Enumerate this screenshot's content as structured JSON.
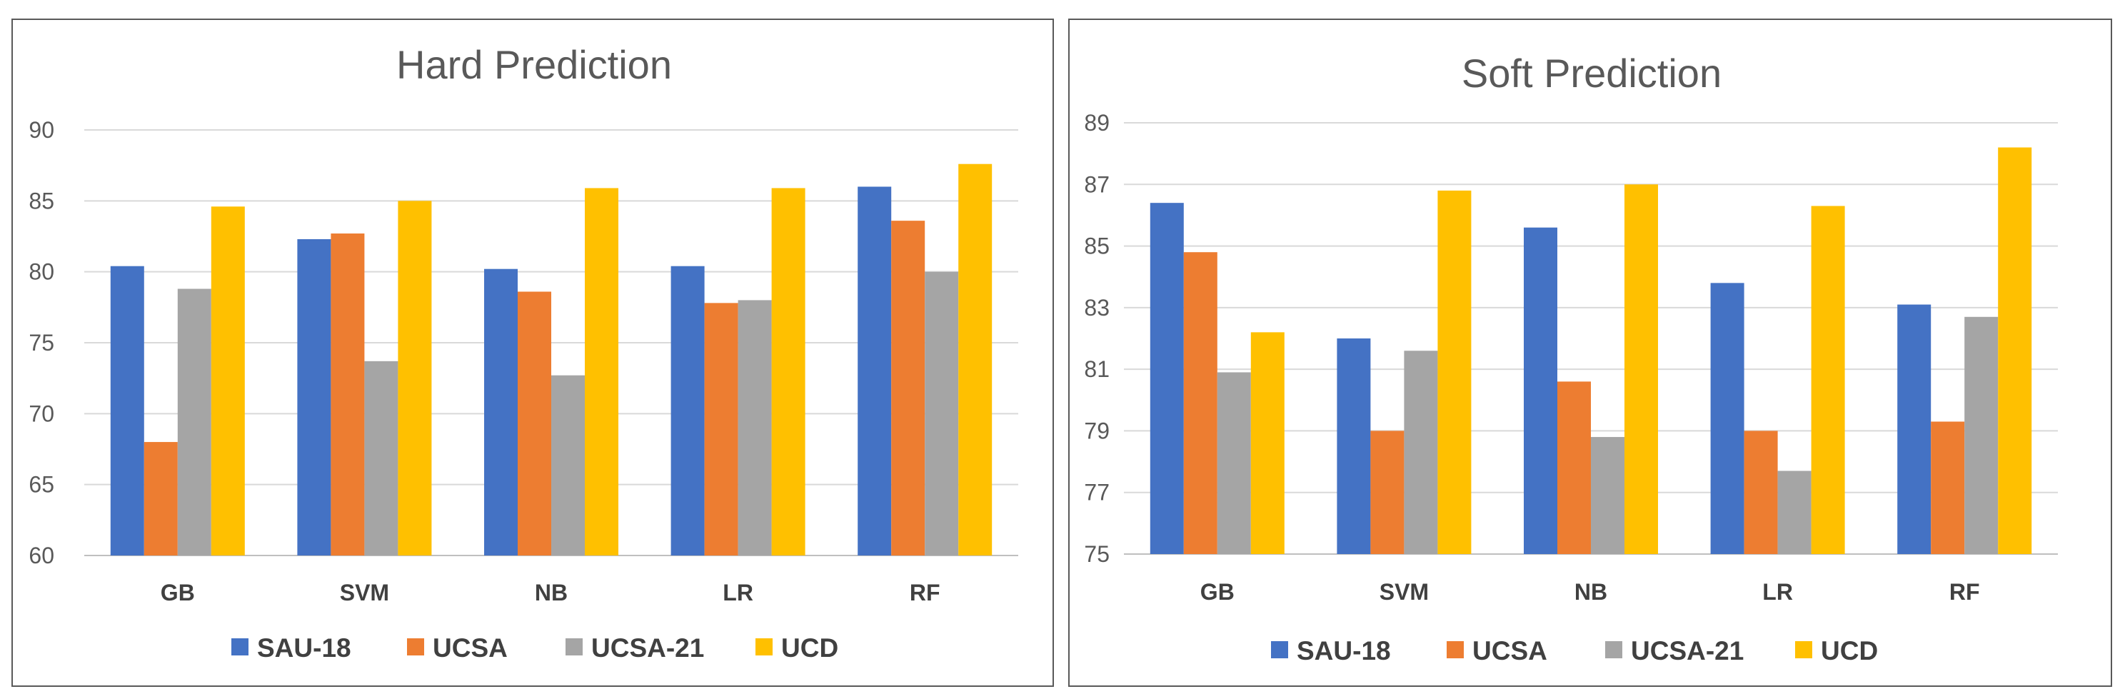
{
  "chart_data": [
    {
      "type": "bar",
      "title": "Hard Prediction",
      "categories": [
        "GB",
        "SVM",
        "NB",
        "LR",
        "RF"
      ],
      "ylim": [
        60,
        90
      ],
      "yticks": [
        60,
        65,
        70,
        75,
        80,
        85,
        90
      ],
      "xlabel": "",
      "ylabel": "",
      "legend_position": "bottom",
      "series": [
        {
          "name": "SAU-18",
          "color": "#4472C4",
          "values": [
            80.4,
            82.3,
            80.2,
            80.4,
            86.0
          ]
        },
        {
          "name": "UCSA",
          "color": "#ED7D31",
          "values": [
            68.0,
            82.7,
            78.6,
            77.8,
            83.6
          ]
        },
        {
          "name": "UCSA-21",
          "color": "#A5A5A5",
          "values": [
            78.8,
            73.7,
            72.7,
            78.0,
            80.0
          ]
        },
        {
          "name": "UCD",
          "color": "#FFC000",
          "values": [
            84.6,
            85.0,
            85.9,
            85.9,
            87.6
          ]
        }
      ]
    },
    {
      "type": "bar",
      "title": "Soft Prediction",
      "categories": [
        "GB",
        "SVM",
        "NB",
        "LR",
        "RF"
      ],
      "ylim": [
        75,
        89
      ],
      "yticks": [
        75,
        77,
        79,
        81,
        83,
        85,
        87,
        89
      ],
      "xlabel": "",
      "ylabel": "",
      "legend_position": "bottom",
      "series": [
        {
          "name": "SAU-18",
          "color": "#4472C4",
          "values": [
            86.4,
            82.0,
            85.6,
            83.8,
            83.1
          ]
        },
        {
          "name": "UCSA",
          "color": "#ED7D31",
          "values": [
            84.8,
            79.0,
            80.6,
            79.0,
            79.3
          ]
        },
        {
          "name": "UCSA-21",
          "color": "#A5A5A5",
          "values": [
            80.9,
            81.6,
            78.8,
            77.7,
            82.7
          ]
        },
        {
          "name": "UCD",
          "color": "#FFC000",
          "values": [
            82.2,
            86.8,
            87.0,
            86.3,
            88.2
          ]
        }
      ]
    }
  ]
}
